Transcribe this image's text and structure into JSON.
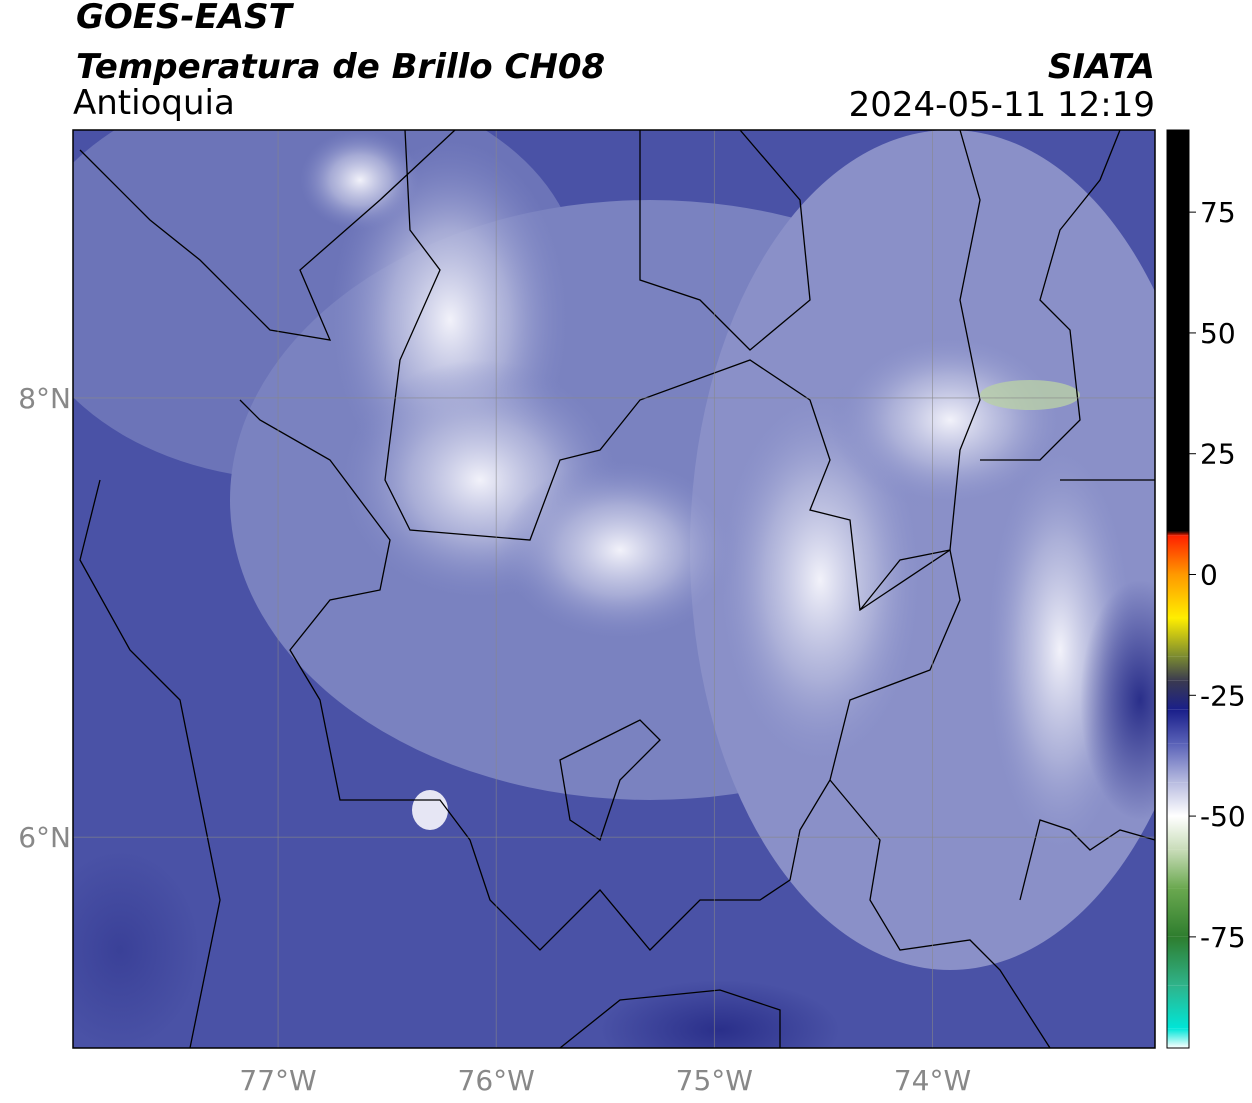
{
  "header": {
    "satellite": "GOES-EAST",
    "product": "Temperatura de Brillo CH08",
    "region": "Antioquia",
    "source": "SIATA",
    "datetime": "2024-05-11 12:19"
  },
  "map": {
    "lonlim": [
      -77.94,
      -72.98
    ],
    "latlim": [
      5.04,
      9.22
    ],
    "lonticks": [
      {
        "value": -77,
        "label": "77°W"
      },
      {
        "value": -76,
        "label": "76°W"
      },
      {
        "value": -75,
        "label": "75°W"
      },
      {
        "value": -74,
        "label": "74°W"
      }
    ],
    "latticks": [
      {
        "value": 8,
        "label": "8°N"
      },
      {
        "value": 6,
        "label": "6°N"
      }
    ],
    "grid": true
  },
  "colorbar": {
    "lim": [
      -98,
      92
    ],
    "ticks": [
      75,
      50,
      25,
      0,
      -25,
      -50,
      -75
    ],
    "stops": [
      {
        "value": -98,
        "color": "#ffffff"
      },
      {
        "value": -94,
        "color": "#00e6d8"
      },
      {
        "value": -85,
        "color": "#2fb38a"
      },
      {
        "value": -75,
        "color": "#2e7d2e"
      },
      {
        "value": -65,
        "color": "#6aa84f"
      },
      {
        "value": -57,
        "color": "#c8dcb8"
      },
      {
        "value": -50,
        "color": "#ffffff"
      },
      {
        "value": -43,
        "color": "#b8bce0"
      },
      {
        "value": -35,
        "color": "#5a62b8"
      },
      {
        "value": -28,
        "color": "#1a1f8a"
      },
      {
        "value": -22,
        "color": "#3a3a50"
      },
      {
        "value": -17,
        "color": "#7a8a30"
      },
      {
        "value": -9,
        "color": "#ffee00"
      },
      {
        "value": 0,
        "color": "#ff9900"
      },
      {
        "value": 8,
        "color": "#ff2200"
      },
      {
        "value": 9,
        "color": "#000000"
      },
      {
        "value": 92,
        "color": "#000000"
      }
    ]
  }
}
